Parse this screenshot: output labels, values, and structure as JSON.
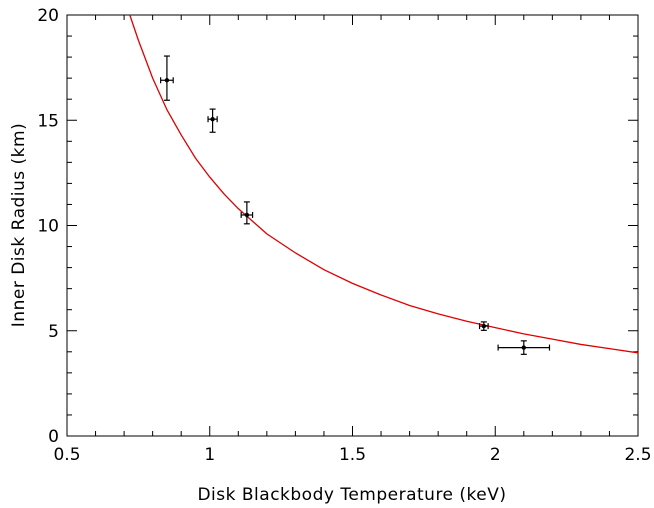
{
  "chart_data": {
    "type": "scatter",
    "xlabel": "Disk Blackbody Temperature (keV)",
    "ylabel": "Inner Disk Radius (km)",
    "xlim": [
      0.5,
      2.5
    ],
    "ylim": [
      0,
      20
    ],
    "x_ticks": [
      "0.5",
      "1",
      "1.5",
      "2",
      "2.5"
    ],
    "y_ticks": [
      "0",
      "5",
      "10",
      "15",
      "20"
    ],
    "grid": false,
    "colors": {
      "points": "#000000",
      "fit_line": "#e00000",
      "axes": "#000000"
    },
    "series": [
      {
        "values": [
          {
            "x": 0.85,
            "y": 16.9,
            "xerr": 0.022,
            "yerr_low": 0.95,
            "yerr_high": 1.15
          },
          {
            "x": 1.01,
            "y": 15.05,
            "xerr": 0.016,
            "yerr_low": 0.62,
            "yerr_high": 0.48
          },
          {
            "x": 1.13,
            "y": 10.5,
            "xerr": 0.02,
            "yerr_low": 0.42,
            "yerr_high": 0.62
          },
          {
            "x": 1.96,
            "y": 5.22,
            "xerr": 0.015,
            "yerr_low": 0.2,
            "yerr_high": 0.2
          },
          {
            "x": 2.1,
            "y": 4.2,
            "xerr": 0.09,
            "yerr_low": 0.32,
            "yerr_high": 0.32
          }
        ]
      }
    ],
    "fit_curve": {
      "x": [
        0.72,
        0.75,
        0.8,
        0.85,
        0.9,
        0.95,
        1.0,
        1.05,
        1.1,
        1.15,
        1.2,
        1.3,
        1.4,
        1.5,
        1.6,
        1.7,
        1.8,
        1.9,
        2.0,
        2.1,
        2.2,
        2.3,
        2.4,
        2.5
      ],
      "y": [
        20.0,
        18.8,
        17.0,
        15.5,
        14.3,
        13.2,
        12.3,
        11.5,
        10.8,
        10.2,
        9.6,
        8.7,
        7.9,
        7.25,
        6.7,
        6.2,
        5.8,
        5.45,
        5.15,
        4.85,
        4.6,
        4.35,
        4.15,
        3.95
      ]
    }
  }
}
